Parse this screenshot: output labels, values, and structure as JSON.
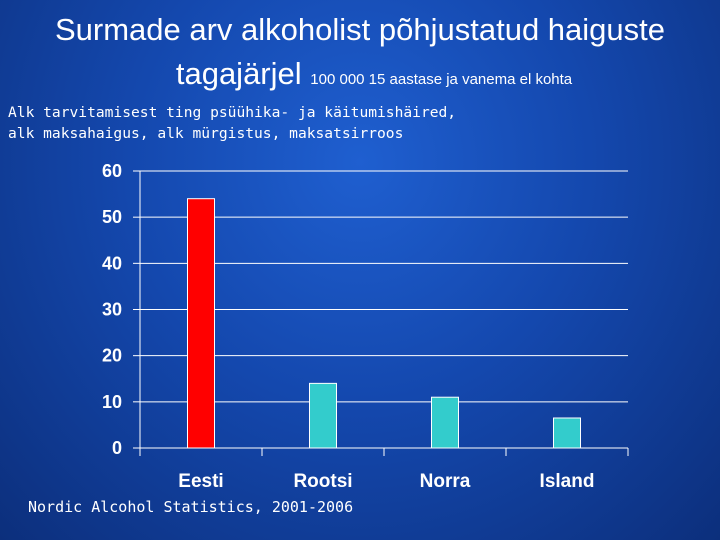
{
  "slide": {
    "title_main_1": "Surmade arv alkoholist põhjustatud haiguste",
    "title_main_2": "tagajärjel",
    "title_small": "100 000 15 aastase ja vanema el kohta",
    "subtitle_line1": "Alk tarvitamisest ting psüühika- ja käitumishäired,",
    "subtitle_line2": "alk maksahaigus, alk mürgistus, maksatsirroos",
    "source": "Nordic Alcohol Statistics, 2001-2006"
  },
  "chart_data": {
    "type": "bar",
    "categories": [
      "Eesti",
      "Rootsi",
      "Norra",
      "Island"
    ],
    "values": [
      54,
      14,
      11,
      6.5
    ],
    "colors": [
      "#ff0000",
      "#33cccc",
      "#33cccc",
      "#33cccc"
    ],
    "ylim": [
      0,
      60
    ],
    "yticks": [
      0,
      10,
      20,
      30,
      40,
      50,
      60
    ],
    "ytick_labels": [
      "0",
      "10",
      "20",
      "30",
      "40",
      "50",
      "60"
    ],
    "grid": true,
    "legend": "none"
  }
}
